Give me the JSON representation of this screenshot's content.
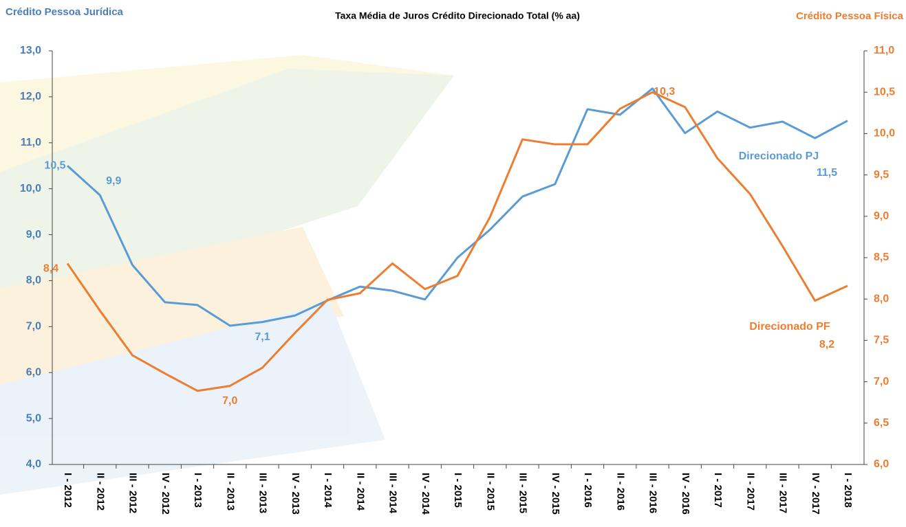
{
  "chart_data": {
    "type": "line",
    "title": "Taxa Média de Juros Crédito Direcionado Total (% aa)",
    "ylabel": "Crédito Pessoa Jurídica",
    "y2label": "Crédito Pessoa Física",
    "categories": [
      "I - 2012",
      "II - 2012",
      "III - 2012",
      "IV - 2012",
      "I - 2013",
      "II - 2013",
      "III - 2013",
      "IV - 2013",
      "I - 2014",
      "II - 2014",
      "III - 2014",
      "IV - 2014",
      "I - 2015",
      "II - 2015",
      "III - 2015",
      "IV - 2015",
      "I - 2016",
      "II - 2016",
      "III - 2016",
      "IV - 2016",
      "I - 2017",
      "II - 2017",
      "III - 2017",
      "IV - 2017",
      "I - 2018"
    ],
    "ylim": [
      4,
      13
    ],
    "yticks": [
      {
        "value": 4,
        "label": "4,0"
      },
      {
        "value": 5,
        "label": "5,0"
      },
      {
        "value": 6,
        "label": "6,0"
      },
      {
        "value": 7,
        "label": "7,0"
      },
      {
        "value": 8,
        "label": "8,0"
      },
      {
        "value": 9,
        "label": "9,0"
      },
      {
        "value": 10,
        "label": "10,0"
      },
      {
        "value": 11,
        "label": "11,0"
      },
      {
        "value": 12,
        "label": "12,0"
      },
      {
        "value": 13,
        "label": "13,0"
      }
    ],
    "y2lim": [
      6,
      11
    ],
    "y2ticks": [
      {
        "value": 6,
        "label": "6,0"
      },
      {
        "value": 6.5,
        "label": "6,5"
      },
      {
        "value": 7,
        "label": "7,0"
      },
      {
        "value": 7.5,
        "label": "7,5"
      },
      {
        "value": 8,
        "label": "8,0"
      },
      {
        "value": 8.5,
        "label": "8,5"
      },
      {
        "value": 9,
        "label": "9,0"
      },
      {
        "value": 9.5,
        "label": "9,5"
      },
      {
        "value": 10,
        "label": "10,0"
      },
      {
        "value": 10.5,
        "label": "10,5"
      },
      {
        "value": 11,
        "label": "11,0"
      }
    ],
    "grid": false,
    "series": [
      {
        "name": "Direcionado PJ",
        "color": "#5b9bd5",
        "axis": "y",
        "values": [
          10.5,
          9.86,
          8.34,
          7.53,
          7.47,
          7.02,
          7.1,
          7.24,
          7.57,
          7.87,
          7.78,
          7.59,
          8.5,
          9.11,
          9.83,
          10.1,
          11.73,
          11.61,
          12.18,
          11.21,
          11.68,
          11.33,
          11.46,
          11.1,
          11.48
        ],
        "value_labels": [
          "10,5",
          "9,9",
          null,
          null,
          null,
          null,
          "7,1",
          null,
          null,
          null,
          null,
          null,
          null,
          null,
          null,
          null,
          null,
          null,
          null,
          null,
          null,
          null,
          null,
          null,
          "11,5"
        ]
      },
      {
        "name": "Direcionado PF",
        "color": "#ed7d31",
        "axis": "y2",
        "values": [
          8.43,
          7.86,
          7.32,
          7.1,
          6.89,
          6.95,
          7.17,
          7.59,
          7.99,
          8.07,
          8.43,
          8.12,
          8.28,
          8.99,
          9.93,
          9.87,
          9.87,
          10.3,
          10.5,
          10.32,
          9.7,
          9.27,
          8.64,
          7.98,
          8.16
        ],
        "value_labels": [
          "8,4",
          null,
          null,
          null,
          null,
          "7,0",
          null,
          null,
          null,
          null,
          null,
          null,
          null,
          null,
          null,
          null,
          null,
          null,
          null,
          "10,3",
          null,
          null,
          null,
          null,
          "8,2"
        ]
      }
    ]
  }
}
